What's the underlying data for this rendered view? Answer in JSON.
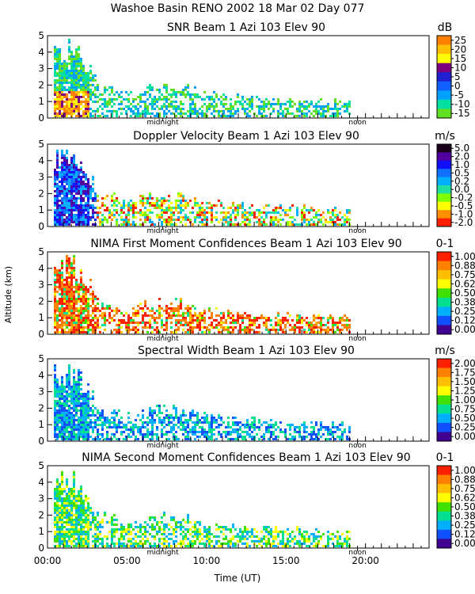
{
  "figure": {
    "title": "Washoe Basin RENO 2002  18 Mar 02 Day 077",
    "ylabel": "Altitude (km)",
    "xlabel": "Time (UT)",
    "xticklabels": [
      "00:00",
      "05:00",
      "10:00",
      "15:00",
      "20:00"
    ],
    "xtick_hours": [
      0,
      5,
      10,
      15,
      20
    ],
    "marker_midnight": "midnight",
    "marker_noon": "noon",
    "midnight_hour": 7.25,
    "noon_hour": 19.5
  },
  "chart_data": [
    {
      "type": "heatmap",
      "title": "SNR Beam 1 Azi 103 Elev 90",
      "units": "dB",
      "xlim": [
        0,
        24
      ],
      "ylim": [
        0,
        5
      ],
      "yticks": [
        "0",
        "1",
        "2",
        "3",
        "4",
        "5"
      ],
      "colorbar_ticks": [
        "25",
        "20",
        "15",
        "10",
        "5",
        "0",
        "-5",
        "-10",
        "-15"
      ],
      "colorbar_colors": [
        "#ff8000",
        "#ffbf00",
        "#ffff00",
        "#7f007f",
        "#2020d0",
        "#1060ff",
        "#00a0ff",
        "#00e0a0",
        "#60e020"
      ],
      "echo_top_km": [
        [
          0.3,
          4.4
        ],
        [
          1.5,
          4.4
        ],
        [
          2.5,
          3.5
        ],
        [
          3.2,
          2.0
        ],
        [
          5,
          1.6
        ],
        [
          7,
          2.0
        ],
        [
          8.5,
          2.0
        ],
        [
          10,
          1.5
        ],
        [
          12,
          1.3
        ],
        [
          14,
          1.2
        ],
        [
          16.5,
          1.1
        ],
        [
          19.3,
          1.1
        ]
      ],
      "note": "Strongest returns (>15 dB) below 1.5 km between 00:30 and 02:30 UT; mostly -15 to -5 dB elsewhere"
    },
    {
      "type": "heatmap",
      "title": "Doppler Velocity Beam 1 Azi 103 Elev 90",
      "units": "m/s",
      "xlim": [
        0,
        24
      ],
      "ylim": [
        0,
        5
      ],
      "yticks": [
        "0",
        "1",
        "2",
        "3",
        "4",
        "5"
      ],
      "colorbar_ticks": [
        "5.0",
        "2.0",
        "1.0",
        "0.5",
        "0.2",
        "0.0",
        "-0.2",
        "-0.5",
        "-1.0",
        "-2.0"
      ],
      "colorbar_colors": [
        "#1a001a",
        "#5000a0",
        "#1010ff",
        "#1070ff",
        "#00b0ff",
        "#20e0a0",
        "#80ff00",
        "#ffff00",
        "#ff9000",
        "#ff2000"
      ],
      "echo_top_km": [
        [
          0.3,
          4.4
        ],
        [
          1.5,
          4.4
        ],
        [
          2.5,
          3.5
        ],
        [
          3.2,
          2.0
        ],
        [
          5,
          1.6
        ],
        [
          7,
          2.0
        ],
        [
          8.5,
          2.0
        ],
        [
          10,
          1.5
        ],
        [
          12,
          1.3
        ],
        [
          14,
          1.2
        ],
        [
          16.5,
          1.1
        ],
        [
          19.3,
          1.1
        ]
      ],
      "note": "Downward motion (0.5 to 2 m/s) dominant before 03:00 UT; near-zero to slightly negative values after"
    },
    {
      "type": "heatmap",
      "title": "NIMA First Moment Confidences Beam 1 Azi 103 Elev 90",
      "units": "0-1",
      "xlim": [
        0,
        24
      ],
      "ylim": [
        0,
        5
      ],
      "yticks": [
        "0",
        "1",
        "2",
        "3",
        "4",
        "5"
      ],
      "colorbar_ticks": [
        "1.00",
        "0.88",
        "0.75",
        "0.62",
        "0.50",
        "0.38",
        "0.25",
        "0.12",
        "0.00"
      ],
      "colorbar_colors": [
        "#ff2000",
        "#ff8000",
        "#ffbf00",
        "#ffff00",
        "#40e000",
        "#00e090",
        "#00b0ff",
        "#1050ff",
        "#400090"
      ],
      "echo_top_km": [
        [
          0.3,
          4.4
        ],
        [
          1.5,
          4.4
        ],
        [
          2.5,
          3.5
        ],
        [
          3.2,
          2.0
        ],
        [
          5,
          1.6
        ],
        [
          7,
          2.0
        ],
        [
          8.5,
          2.0
        ],
        [
          10,
          1.5
        ],
        [
          12,
          1.3
        ],
        [
          14,
          1.2
        ],
        [
          16.5,
          1.1
        ],
        [
          19.3,
          1.1
        ]
      ],
      "note": "High confidence (0.88 to 1.00) through most of the echo column"
    },
    {
      "type": "heatmap",
      "title": "Spectral Width Beam 1 Azi 103 Elev 90",
      "units": "m/s",
      "xlim": [
        0,
        24
      ],
      "ylim": [
        0,
        5
      ],
      "yticks": [
        "0",
        "1",
        "2",
        "3",
        "4",
        "5"
      ],
      "colorbar_ticks": [
        "2.00",
        "1.75",
        "1.50",
        "1.25",
        "1.00",
        "0.75",
        "0.50",
        "0.25",
        "0.00"
      ],
      "colorbar_colors": [
        "#ff2000",
        "#ff8000",
        "#ffbf00",
        "#ffff00",
        "#40e000",
        "#00e090",
        "#00b0ff",
        "#1050ff",
        "#400090"
      ],
      "echo_top_km": [
        [
          0.3,
          4.4
        ],
        [
          1.5,
          4.4
        ],
        [
          2.5,
          3.5
        ],
        [
          3.2,
          2.0
        ],
        [
          5,
          1.6
        ],
        [
          7,
          2.0
        ],
        [
          8.5,
          2.0
        ],
        [
          10,
          1.5
        ],
        [
          12,
          1.3
        ],
        [
          14,
          1.2
        ],
        [
          16.5,
          1.1
        ],
        [
          19.3,
          1.1
        ]
      ],
      "note": "Narrow widths (0.25 to 0.75 m/s) throughout"
    },
    {
      "type": "heatmap",
      "title": "NIMA Second Moment Confidences Beam 1 Azi 103 Elev 90",
      "units": "0-1",
      "xlim": [
        0,
        24
      ],
      "ylim": [
        0,
        5
      ],
      "yticks": [
        "0",
        "1",
        "2",
        "3",
        "4",
        "5"
      ],
      "colorbar_ticks": [
        "1.00",
        "0.88",
        "0.75",
        "0.62",
        "0.50",
        "0.38",
        "0.25",
        "0.12",
        "0.00"
      ],
      "colorbar_colors": [
        "#ff2000",
        "#ff8000",
        "#ffbf00",
        "#ffff00",
        "#40e000",
        "#00e090",
        "#00b0ff",
        "#1050ff",
        "#400090"
      ],
      "echo_top_km": [
        [
          0.3,
          4.4
        ],
        [
          1.5,
          4.4
        ],
        [
          2.5,
          3.5
        ],
        [
          3.2,
          2.0
        ],
        [
          5,
          1.6
        ],
        [
          7,
          2.0
        ],
        [
          8.5,
          2.0
        ],
        [
          10,
          1.5
        ],
        [
          12,
          1.3
        ],
        [
          14,
          1.2
        ],
        [
          16.5,
          1.1
        ],
        [
          19.3,
          1.1
        ]
      ],
      "note": "Moderate confidence (0.38 to 0.62) with higher values near 00:00-02:30 and 07:00-10:00 UT"
    }
  ]
}
